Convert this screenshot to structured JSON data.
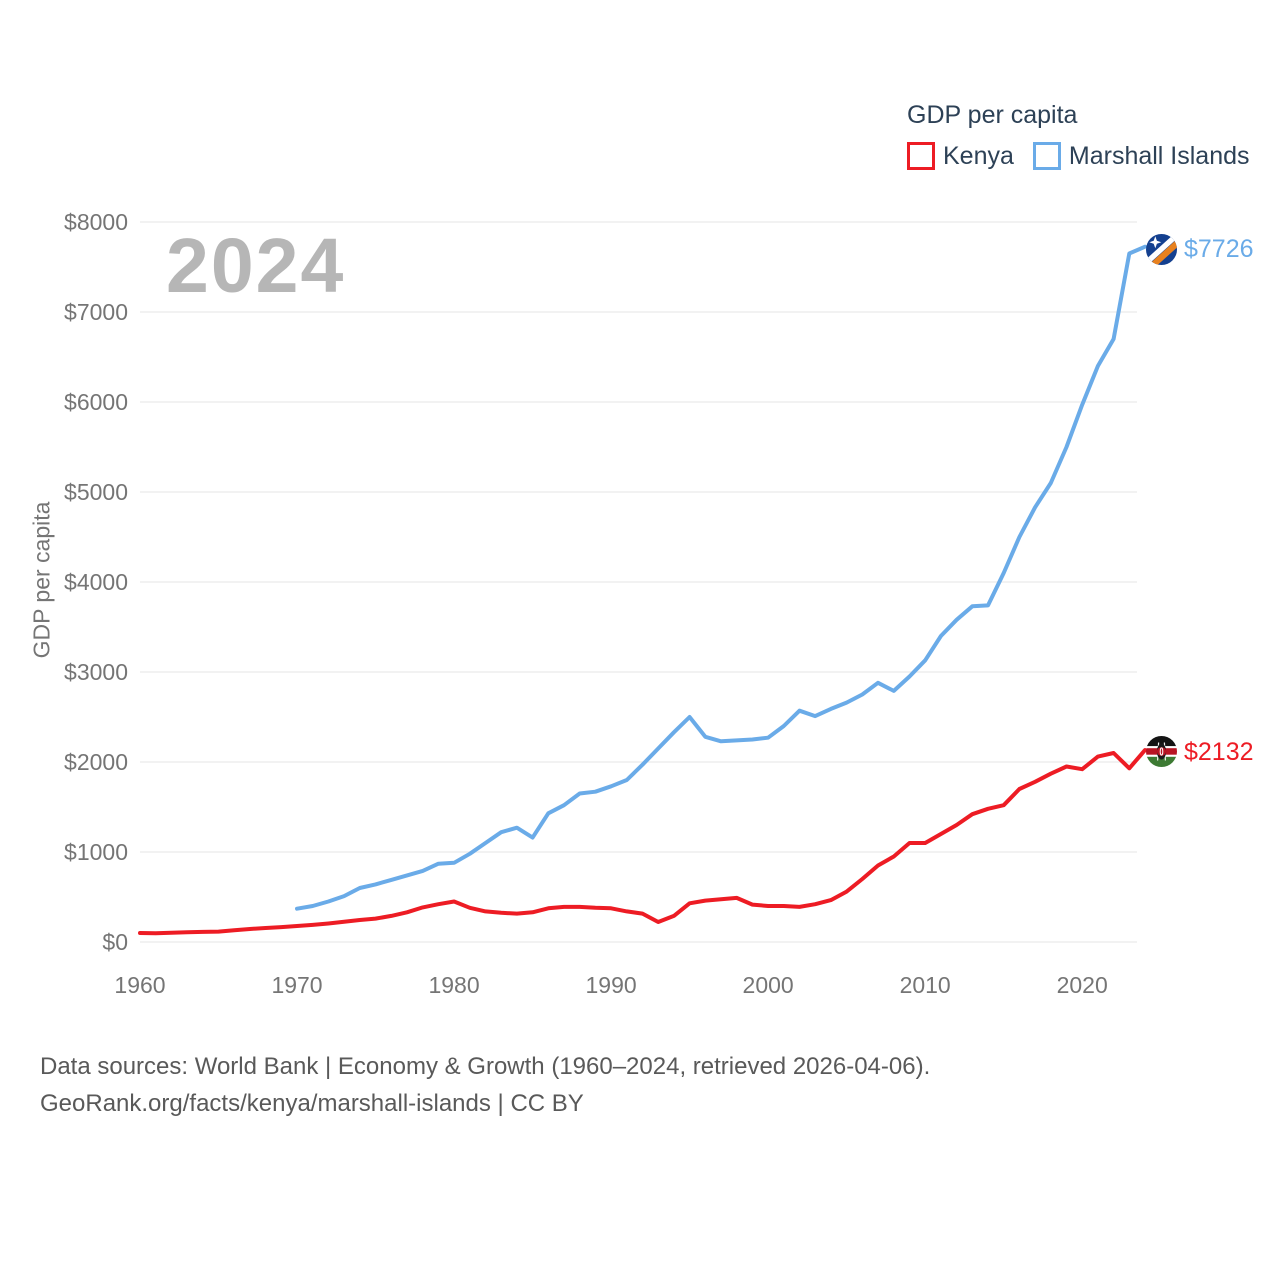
{
  "watermark": "2024",
  "legend": {
    "title": "GDP per capita",
    "items": [
      {
        "label": "Kenya",
        "color": "#ed1c24"
      },
      {
        "label": "Marshall Islands",
        "color": "#6aabe8"
      }
    ]
  },
  "y_axis_title": "GDP per capita",
  "footer": {
    "line1": "Data sources: World Bank | Economy & Growth (1960–2024, retrieved 2026-04-06).",
    "line2": "GeoRank.org/facts/kenya/marshall-islands | CC BY"
  },
  "chart_data": {
    "type": "line",
    "title": "GDP per capita",
    "ylabel": "GDP per capita",
    "xlim": [
      1960,
      2024
    ],
    "ylim": [
      0,
      8000
    ],
    "grid": "horizontal",
    "legend_position": "top-right",
    "x_ticks": {
      "values": [
        1960,
        1970,
        1980,
        1990,
        2000,
        2010,
        2020
      ],
      "labels": [
        "1960",
        "1970",
        "1980",
        "1990",
        "2000",
        "2010",
        "2020"
      ]
    },
    "y_ticks": {
      "values": [
        0,
        1000,
        2000,
        3000,
        4000,
        5000,
        6000,
        7000,
        8000
      ],
      "labels": [
        "$0",
        "$1000",
        "$2000",
        "$3000",
        "$4000",
        "$5000",
        "$6000",
        "$7000",
        "$8000"
      ]
    },
    "series": [
      {
        "name": "Kenya",
        "color": "#ed1c24",
        "start_year": 1960,
        "end_year": 2024,
        "end_label": "$2132",
        "end_value": 2132,
        "values": [
          100,
          97,
          103,
          108,
          112,
          115,
          130,
          145,
          155,
          165,
          178,
          190,
          206,
          225,
          245,
          260,
          290,
          330,
          385,
          420,
          450,
          380,
          340,
          325,
          315,
          330,
          375,
          390,
          390,
          380,
          375,
          340,
          315,
          222,
          290,
          430,
          460,
          475,
          490,
          415,
          400,
          400,
          390,
          420,
          465,
          560,
          700,
          850,
          950,
          1100,
          1100,
          1200,
          1300,
          1420,
          1480,
          1520,
          1700,
          1780,
          1870,
          1950,
          1920,
          2060,
          2100,
          1930,
          2132
        ]
      },
      {
        "name": "Marshall Islands",
        "color": "#6aabe8",
        "start_year": 1970,
        "end_year": 2024,
        "end_label": "$7726",
        "end_value": 7726,
        "values": [
          370,
          400,
          450,
          510,
          600,
          640,
          690,
          740,
          790,
          870,
          880,
          980,
          1100,
          1220,
          1270,
          1160,
          1430,
          1520,
          1650,
          1670,
          1730,
          1800,
          1970,
          2150,
          2330,
          2500,
          2280,
          2230,
          2240,
          2250,
          2270,
          2400,
          2570,
          2510,
          2590,
          2660,
          2750,
          2880,
          2790,
          2950,
          3130,
          3400,
          3580,
          3730,
          3740,
          4100,
          4500,
          4830,
          5100,
          5500,
          5970,
          6400,
          6700,
          7650,
          7726
        ]
      }
    ]
  }
}
